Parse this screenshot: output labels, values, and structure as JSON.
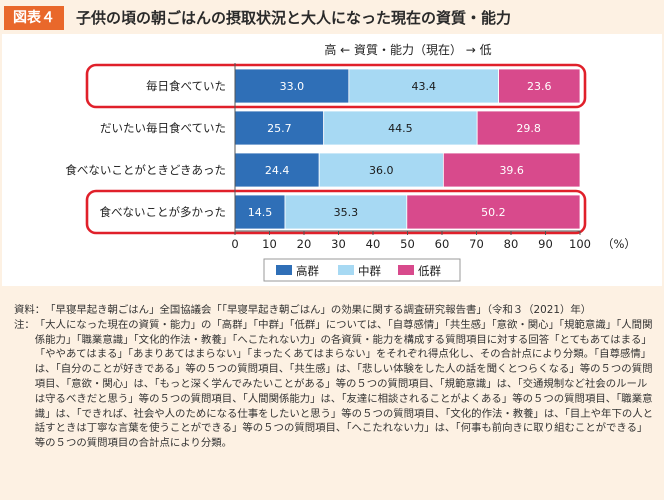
{
  "figure": {
    "label": "図表４",
    "title": "子供の頃の朝ごはんの摂取状況と大人になった現在の資質・能力"
  },
  "chart_data": {
    "type": "bar",
    "orientation": "horizontal",
    "stacked": true,
    "scale_caption": "高 ← 資質・能力（現在） → 低",
    "categories": [
      "毎日食べていた",
      "だいたい毎日食べていた",
      "食べないことがときどきあった",
      "食べないことが多かった"
    ],
    "series": [
      {
        "name": "高群",
        "values": [
          33.0,
          25.7,
          24.4,
          14.5
        ],
        "color": "#2f6fb7",
        "labels": [
          "33.0",
          "25.7",
          "24.4",
          "14.5"
        ]
      },
      {
        "name": "中群",
        "values": [
          43.4,
          44.5,
          36.0,
          35.3
        ],
        "color": "#a7d9f3",
        "labels": [
          "43.4",
          "44.5",
          "36.0",
          "35.3"
        ]
      },
      {
        "name": "低群",
        "values": [
          23.6,
          29.8,
          39.6,
          50.2
        ],
        "color": "#d84a8c",
        "labels": [
          "23.6",
          "29.8",
          "39.6",
          "50.2"
        ]
      }
    ],
    "highlighted_categories": [
      0,
      3
    ],
    "highlight_color": "#e0202a",
    "xlim": [
      0,
      100
    ],
    "xticks": [
      "0",
      "10",
      "20",
      "30",
      "40",
      "50",
      "60",
      "70",
      "80",
      "90",
      "100"
    ],
    "xunit": "（%）",
    "legend_position": "bottom-center"
  },
  "notes": {
    "source_label": "資料：",
    "source_text": "「早寝早起き朝ごはん」全国協議会「「早寝早起き朝ごはん」の効果に関する調査研究報告書」（令和３（2021）年）",
    "note_label": "注：",
    "note_text": "「大人になった現在の資質・能力」の「高群」「中群」「低群」については、「自尊感情」「共生感」「意欲・関心」「規範意識」「人間関係能力」「職業意識」「文化的作法・教養」「へこたれない力」の各資質・能力を構成する質問項目に対する回答「とてもあてはまる」「ややあてはまる」「あまりあてはまらない」「まったくあてはまらない」をそれぞれ得点化し、その合計点により分類。「自尊感情」は、「自分のことが好きである」等の５つの質問項目、「共生感」は、「悲しい体験をした人の話を聞くとつらくなる」等の５つの質問項目、「意欲・関心」は、「もっと深く学んでみたいことがある」等の５つの質問項目、「規範意識」は、「交通規制など社会のルールは守るべきだと思う」等の５つの質問項目、「人間関係能力」は、「友達に相談されることがよくある」等の５つの質問項目、「職業意識」は、「できれば、社会や人のためになる仕事をしたいと思う」等の５つの質問項目、「文化的作法・教養」は、「目上や年下の人と話すときは丁寧な言葉を使うことができる」等の５つの質問項目、「へこたれない力」は、「何事も前向きに取り組むことができる」等の５つの質問項目の合計点により分類。"
  }
}
